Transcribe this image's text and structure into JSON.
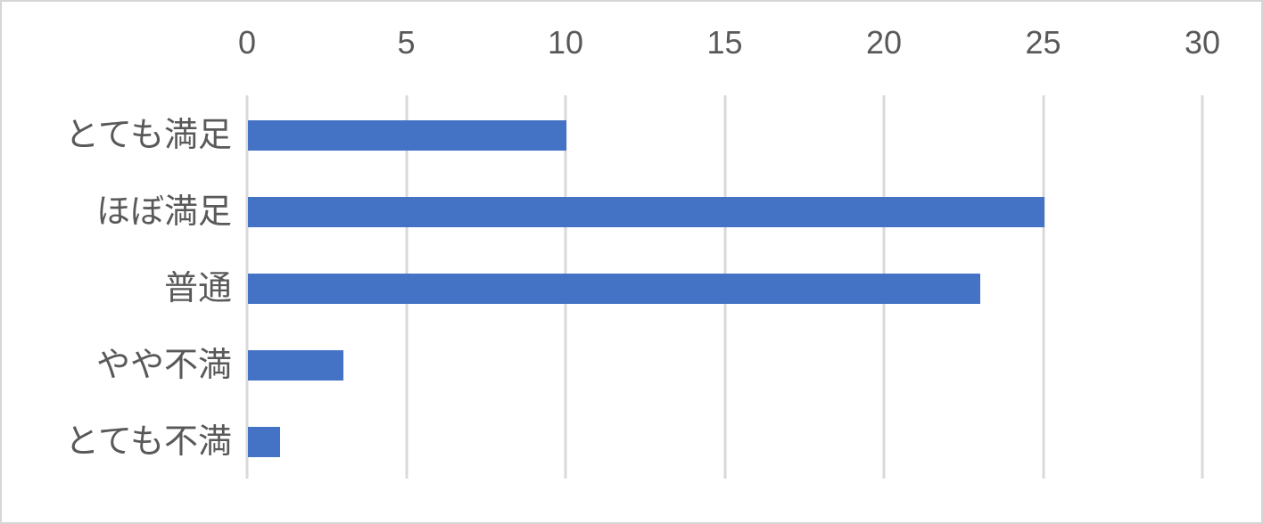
{
  "chart_data": {
    "type": "bar",
    "orientation": "horizontal",
    "title": "",
    "xlabel": "",
    "ylabel": "",
    "categories": [
      "とても満足",
      "ほぼ満足",
      "普通",
      "やや不満",
      "とても不満"
    ],
    "values": [
      10,
      25,
      23,
      3,
      1
    ],
    "xlim": [
      0,
      30
    ],
    "x_ticks": [
      0,
      5,
      10,
      15,
      20,
      25,
      30
    ],
    "axis_position": "top",
    "grid": true,
    "legend": "none",
    "colors": {
      "bar": "#4472C4",
      "gridline": "#D9D9D9",
      "axis_text": "#595959",
      "background": "#FFFFFF",
      "border": "#D6D6D6"
    }
  }
}
